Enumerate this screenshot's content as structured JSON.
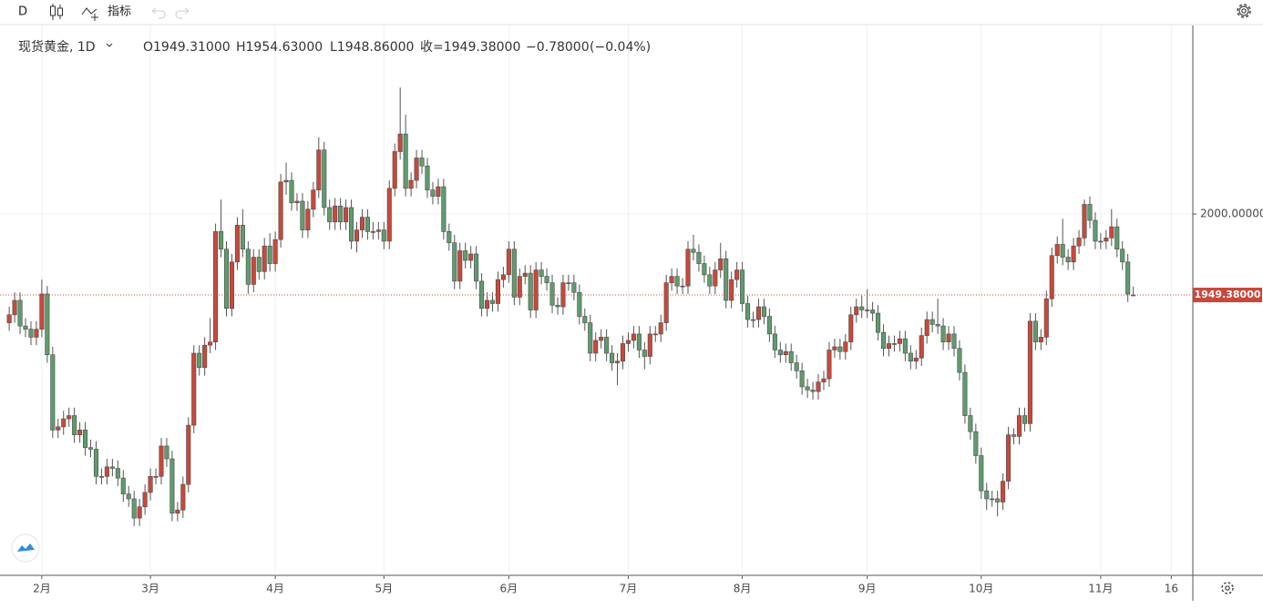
{
  "toolbar": {
    "interval": "D",
    "indicators": "指标"
  },
  "legend": {
    "symbol": "现货黄金, 1D",
    "ohlc": [
      "O1949.31000",
      "H1954.63000",
      "L1948.86000",
      "收=1949.38000"
    ],
    "change": "−0.78000",
    "change_percent": "(−0.04%)"
  },
  "chart_data": {
    "type": "candlestick",
    "up_color": "#c9483a",
    "down_color": "#5e9c6d",
    "grid": true,
    "xlim": [
      -1.7,
      217.8
    ],
    "ylim": [
      1774.2,
      2115.5
    ],
    "xticks": [
      {
        "value": 6,
        "label": "2月"
      },
      {
        "value": 26,
        "label": "3月"
      },
      {
        "value": 49,
        "label": "4月"
      },
      {
        "value": 69,
        "label": "5月"
      },
      {
        "value": 92,
        "label": "6月"
      },
      {
        "value": 114,
        "label": "7月"
      },
      {
        "value": 135,
        "label": "8月"
      },
      {
        "value": 158,
        "label": "9月"
      },
      {
        "value": 179,
        "label": "10月"
      },
      {
        "value": 201,
        "label": "11月"
      },
      {
        "value": 214,
        "label": "16"
      }
    ],
    "yticks": [
      {
        "value": 2000,
        "label": "2000.00000"
      }
    ],
    "last_price": {
      "value": 1949.38,
      "label": "1949.38000",
      "color": "#c9483a"
    },
    "series": {
      "open": [
        1932,
        1937,
        1946,
        1930,
        1928,
        1923,
        1928,
        1950,
        1912,
        1865,
        1867,
        1872,
        1874,
        1862,
        1865,
        1854,
        1853,
        1836,
        1836,
        1842,
        1841,
        1835,
        1825,
        1822,
        1810,
        1817,
        1826,
        1836,
        1836,
        1855,
        1847,
        1813,
        1815,
        1831,
        1868,
        1913,
        1904,
        1918,
        1920,
        1989,
        1978,
        1941,
        1970,
        1993,
        1978,
        1956,
        1973,
        1964,
        1980,
        1969,
        1984,
        2020,
        2021,
        2007,
        2008,
        1990,
        2003,
        2015,
        2040,
        2004,
        1995,
        2005,
        1995,
        2004,
        1983,
        1990,
        1998,
        1989,
        1989,
        1990,
        1983,
        2016,
        2039,
        2050,
        2016,
        2021,
        2035,
        2030,
        2015,
        2011,
        2017,
        1989,
        1982,
        1958,
        1977,
        1971,
        1975,
        1958,
        1941,
        1946,
        1944,
        1959,
        1962,
        1978,
        1948,
        1961,
        1963,
        1940,
        1965,
        1961,
        1957,
        1943,
        1942,
        1957,
        1957,
        1951,
        1936,
        1932,
        1913,
        1921,
        1923,
        1913,
        1907,
        1908,
        1919,
        1921,
        1925,
        1915,
        1911,
        1925,
        1925,
        1932,
        1957,
        1961,
        1955,
        1955,
        1978,
        1976,
        1969,
        1962,
        1955,
        1965,
        1972,
        1946,
        1959,
        1965,
        1944,
        1934,
        1934,
        1942,
        1936,
        1925,
        1915,
        1912,
        1914,
        1907,
        1902,
        1892,
        1890,
        1889,
        1895,
        1897,
        1915,
        1917,
        1914,
        1920,
        1937,
        1942,
        1940,
        1940,
        1938,
        1926,
        1916,
        1919,
        1919,
        1922,
        1913,
        1908,
        1910,
        1924,
        1934,
        1931,
        1930,
        1920,
        1925,
        1916,
        1901,
        1874,
        1864,
        1849,
        1827,
        1822,
        1822,
        1820,
        1833,
        1862,
        1861,
        1874,
        1869,
        1933,
        1920,
        1923,
        1947,
        1974,
        1981,
        1973,
        1970,
        1980,
        1985,
        2006,
        1996,
        1983,
        1983,
        1985,
        1992,
        1978,
        1970,
        1949.31
      ],
      "high": [
        1942,
        1951,
        1951,
        1935,
        1933,
        1933,
        1959,
        1955,
        1917,
        1872,
        1877,
        1879,
        1879,
        1870,
        1870,
        1859,
        1858,
        1841,
        1847,
        1847,
        1846,
        1840,
        1830,
        1827,
        1822,
        1831,
        1841,
        1841,
        1860,
        1860,
        1852,
        1820,
        1836,
        1873,
        1918,
        1918,
        1923,
        1935,
        1994,
        2009,
        1983,
        1975,
        1998,
        2003,
        1983,
        1978,
        1978,
        1985,
        1988,
        1989,
        2025,
        2032,
        2026,
        2013,
        2013,
        2008,
        2020,
        2048,
        2045,
        2009,
        2010,
        2010,
        2009,
        2009,
        1995,
        2003,
        2003,
        1995,
        1995,
        1995,
        2021,
        2044,
        2079,
        2062,
        2026,
        2040,
        2040,
        2035,
        2020,
        2022,
        2022,
        1994,
        1987,
        1982,
        1982,
        1980,
        1980,
        1963,
        1951,
        1951,
        1964,
        1967,
        1983,
        1983,
        1966,
        1968,
        1968,
        1970,
        1970,
        1966,
        1962,
        1948,
        1962,
        1962,
        1962,
        1956,
        1941,
        1937,
        1926,
        1928,
        1928,
        1918,
        1913,
        1924,
        1926,
        1930,
        1930,
        1920,
        1930,
        1930,
        1937,
        1962,
        1966,
        1966,
        1960,
        1983,
        1987,
        1981,
        1974,
        1967,
        1970,
        1982,
        1977,
        1964,
        1970,
        1970,
        1949,
        1939,
        1947,
        1947,
        1941,
        1930,
        1920,
        1919,
        1919,
        1912,
        1907,
        1897,
        1895,
        1900,
        1902,
        1920,
        1922,
        1922,
        1925,
        1942,
        1947,
        1949,
        1953,
        1945,
        1943,
        1931,
        1924,
        1924,
        1927,
        1927,
        1918,
        1915,
        1929,
        1939,
        1939,
        1947,
        1935,
        1930,
        1930,
        1921,
        1906,
        1879,
        1869,
        1854,
        1832,
        1827,
        1827,
        1838,
        1867,
        1866,
        1879,
        1879,
        1938,
        1938,
        1928,
        1952,
        1979,
        1986,
        1997,
        1978,
        1985,
        1990,
        2009,
        2011,
        2001,
        1988,
        1990,
        2003,
        1997,
        1983,
        1975,
        1954.63
      ],
      "low": [
        1927,
        1932,
        1925,
        1923,
        1918,
        1918,
        1923,
        1907,
        1860,
        1860,
        1862,
        1867,
        1857,
        1857,
        1849,
        1848,
        1831,
        1831,
        1831,
        1836,
        1830,
        1820,
        1817,
        1805,
        1805,
        1812,
        1821,
        1831,
        1831,
        1842,
        1808,
        1808,
        1810,
        1826,
        1863,
        1899,
        1899,
        1913,
        1915,
        1973,
        1936,
        1936,
        1965,
        1973,
        1950,
        1951,
        1959,
        1959,
        1964,
        1964,
        1979,
        2012,
        2002,
        2002,
        1985,
        1985,
        1998,
        2010,
        1999,
        1990,
        1990,
        1990,
        1990,
        1978,
        1976,
        1985,
        1984,
        1984,
        1984,
        1978,
        1978,
        2011,
        2034,
        2011,
        2011,
        2016,
        2025,
        2010,
        2006,
        2006,
        1984,
        1977,
        1953,
        1953,
        1966,
        1966,
        1953,
        1936,
        1936,
        1939,
        1939,
        1954,
        1957,
        1943,
        1943,
        1956,
        1935,
        1935,
        1956,
        1952,
        1938,
        1937,
        1937,
        1952,
        1946,
        1931,
        1927,
        1908,
        1908,
        1916,
        1908,
        1902,
        1893,
        1903,
        1914,
        1916,
        1910,
        1903,
        1906,
        1920,
        1920,
        1927,
        1952,
        1950,
        1950,
        1950,
        1971,
        1964,
        1957,
        1950,
        1950,
        1960,
        1941,
        1941,
        1954,
        1939,
        1929,
        1929,
        1929,
        1931,
        1920,
        1910,
        1907,
        1907,
        1902,
        1897,
        1887,
        1885,
        1884,
        1884,
        1890,
        1892,
        1910,
        1909,
        1909,
        1915,
        1932,
        1935,
        1935,
        1933,
        1921,
        1911,
        1911,
        1914,
        1914,
        1908,
        1903,
        1903,
        1905,
        1919,
        1926,
        1925,
        1915,
        1915,
        1911,
        1896,
        1869,
        1859,
        1844,
        1822,
        1815,
        1817,
        1811,
        1815,
        1828,
        1856,
        1856,
        1864,
        1864,
        1915,
        1915,
        1918,
        1942,
        1969,
        1968,
        1965,
        1965,
        1975,
        1980,
        1991,
        1978,
        1978,
        1978,
        1980,
        1973,
        1965,
        1945,
        1948.86
      ],
      "close": [
        1937,
        1946,
        1930,
        1928,
        1923,
        1928,
        1950,
        1912,
        1865,
        1867,
        1872,
        1874,
        1862,
        1865,
        1854,
        1853,
        1836,
        1836,
        1842,
        1841,
        1835,
        1825,
        1822,
        1810,
        1817,
        1826,
        1836,
        1836,
        1855,
        1847,
        1813,
        1815,
        1831,
        1868,
        1913,
        1904,
        1918,
        1920,
        1989,
        1978,
        1941,
        1970,
        1993,
        1978,
        1956,
        1973,
        1964,
        1980,
        1969,
        1984,
        2020,
        2021,
        2007,
        2008,
        1990,
        2003,
        2015,
        2040,
        2004,
        1995,
        2005,
        1995,
        2004,
        1983,
        1990,
        1998,
        1989,
        1989,
        1990,
        1983,
        2016,
        2039,
        2050,
        2016,
        2021,
        2035,
        2030,
        2015,
        2011,
        2017,
        1989,
        1982,
        1958,
        1977,
        1971,
        1975,
        1958,
        1941,
        1946,
        1944,
        1959,
        1962,
        1978,
        1948,
        1961,
        1963,
        1940,
        1965,
        1961,
        1957,
        1943,
        1942,
        1957,
        1957,
        1951,
        1936,
        1932,
        1913,
        1921,
        1923,
        1913,
        1907,
        1908,
        1919,
        1921,
        1925,
        1915,
        1911,
        1925,
        1925,
        1932,
        1957,
        1961,
        1955,
        1955,
        1978,
        1976,
        1969,
        1962,
        1955,
        1965,
        1972,
        1946,
        1959,
        1965,
        1944,
        1934,
        1934,
        1942,
        1936,
        1925,
        1915,
        1912,
        1914,
        1907,
        1902,
        1892,
        1890,
        1889,
        1895,
        1897,
        1915,
        1917,
        1914,
        1920,
        1937,
        1942,
        1940,
        1940,
        1938,
        1926,
        1916,
        1919,
        1919,
        1922,
        1913,
        1908,
        1910,
        1924,
        1934,
        1931,
        1930,
        1920,
        1925,
        1916,
        1901,
        1874,
        1864,
        1849,
        1827,
        1822,
        1822,
        1820,
        1833,
        1862,
        1861,
        1874,
        1869,
        1933,
        1920,
        1923,
        1947,
        1974,
        1981,
        1973,
        1970,
        1980,
        1985,
        2006,
        1996,
        1983,
        1983,
        1985,
        1992,
        1978,
        1970,
        1950,
        1949.38
      ]
    }
  }
}
